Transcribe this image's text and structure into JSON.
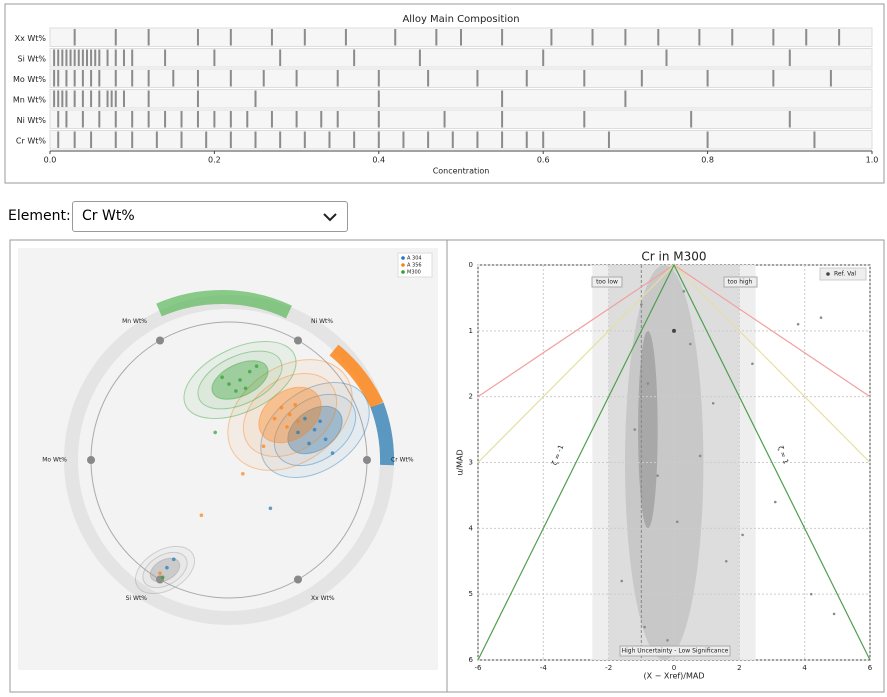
{
  "chart_data": [
    {
      "type": "strip",
      "title": "Alloy Main Composition",
      "x_label": "Concentration",
      "xlim": [
        0,
        1
      ],
      "xticks": [
        {
          "value": 0,
          "label": "0.0"
        },
        0.2,
        0.4,
        0.6,
        0.8,
        {
          "value": 1,
          "label": "1.0"
        }
      ],
      "rows": [
        {
          "name": "Xx Wt%",
          "values": [
            0.03,
            0.08,
            0.12,
            0.18,
            0.22,
            0.27,
            0.31,
            0.36,
            0.42,
            0.47,
            0.5,
            0.55,
            0.61,
            0.66,
            0.7,
            0.74,
            0.79,
            0.83,
            0.88,
            0.92,
            0.96
          ]
        },
        {
          "name": "Si Wt%",
          "values": [
            0.005,
            0.01,
            0.015,
            0.02,
            0.025,
            0.03,
            0.035,
            0.04,
            0.045,
            0.05,
            0.055,
            0.06,
            0.07,
            0.08,
            0.09,
            0.1,
            0.14,
            0.2,
            0.28,
            0.37,
            0.45,
            0.6,
            0.75,
            0.9
          ]
        },
        {
          "name": "Mo Wt%",
          "values": [
            0.005,
            0.01,
            0.02,
            0.03,
            0.04,
            0.05,
            0.06,
            0.08,
            0.1,
            0.12,
            0.15,
            0.18,
            0.22,
            0.26,
            0.3,
            0.35,
            0.4,
            0.46,
            0.52,
            0.58,
            0.65,
            0.72,
            0.8,
            0.88,
            0.95
          ]
        },
        {
          "name": "Mn Wt%",
          "values": [
            0.005,
            0.01,
            0.015,
            0.02,
            0.03,
            0.04,
            0.05,
            0.06,
            0.07,
            0.075,
            0.08,
            0.09,
            0.12,
            0.18,
            0.25,
            0.4,
            0.55,
            0.7
          ]
        },
        {
          "name": "Ni Wt%",
          "values": [
            0.01,
            0.02,
            0.04,
            0.06,
            0.08,
            0.1,
            0.12,
            0.14,
            0.16,
            0.18,
            0.2,
            0.22,
            0.24,
            0.27,
            0.3,
            0.33,
            0.35,
            0.4,
            0.48,
            0.55,
            0.65,
            0.78,
            0.9
          ]
        },
        {
          "name": "Cr Wt%",
          "values": [
            0.01,
            0.03,
            0.05,
            0.08,
            0.1,
            0.13,
            0.16,
            0.19,
            0.22,
            0.25,
            0.28,
            0.31,
            0.34,
            0.37,
            0.4,
            0.43,
            0.46,
            0.49,
            0.52,
            0.55,
            0.58,
            0.6,
            0.68,
            0.8,
            0.93
          ]
        }
      ]
    },
    {
      "type": "radial",
      "axes": [
        "Mn Wt%",
        "Ni Wt%",
        "Cr Wt%",
        "Xx Wt%",
        "Si Wt%",
        "Mo Wt%"
      ],
      "series": [
        {
          "name": "A 304",
          "color": "#1f77b4",
          "x": [
            0.62,
            0.55,
            0.7,
            0.58,
            0.66,
            0.5,
            -0.45,
            -0.4,
            0.3,
            0.75
          ],
          "y": [
            0.22,
            0.3,
            0.15,
            0.12,
            0.28,
            0.2,
            -0.78,
            -0.72,
            -0.35,
            0.05
          ]
        },
        {
          "name": "A 356",
          "color": "#ff7f0e",
          "x": [
            0.44,
            0.38,
            0.5,
            0.42,
            0.33,
            0.48,
            -0.5,
            0.1,
            -0.2,
            0.25
          ],
          "y": [
            0.33,
            0.38,
            0.28,
            0.24,
            0.3,
            0.4,
            -0.82,
            -0.1,
            -0.4,
            0.1
          ]
        },
        {
          "name": "M300",
          "color": "#2ca02c",
          "x": [
            0.08,
            0.0,
            0.15,
            0.05,
            0.12,
            -0.05,
            0.2,
            -0.48,
            -0.1
          ],
          "y": [
            0.58,
            0.55,
            0.64,
            0.5,
            0.52,
            0.6,
            0.68,
            -0.85,
            0.2
          ]
        }
      ]
    },
    {
      "type": "scatter",
      "title": "Cr in M300",
      "x_label": "(X − Xref)/MAD",
      "y_label": "u/MAD",
      "xlim": [
        -6,
        6
      ],
      "xticks": [
        -6,
        -4,
        -2,
        0,
        2,
        4,
        6
      ],
      "ylim": [
        6,
        0
      ],
      "yticks": [
        0,
        1,
        2,
        3,
        4,
        5,
        6
      ],
      "grid": true,
      "points": {
        "color": "#8a8a8a",
        "x": [
          -1,
          -0.8,
          -1.2,
          -0.5,
          0.3,
          0.5,
          1.2,
          1.6,
          2.4,
          3.1,
          4.2,
          4.9,
          -1.6,
          -0.2,
          0.8,
          3.8,
          4.5,
          2.1,
          -0.9,
          0.1
        ],
        "y": [
          0.6,
          1.8,
          2.5,
          3.2,
          0.4,
          1.2,
          2.1,
          4.5,
          1.5,
          3.6,
          5.0,
          5.3,
          4.8,
          5.7,
          2.9,
          0.9,
          0.8,
          4.1,
          5.5,
          3.9
        ]
      },
      "series": [
        {
          "name": "Ref. Val",
          "color": "#444444",
          "x": [
            0
          ],
          "y": [
            1
          ]
        }
      ],
      "guide_lines": [
        {
          "color": "#f2a0a0",
          "x": [
            -6,
            0,
            6
          ],
          "y": [
            2,
            0,
            2
          ]
        },
        {
          "color": "#e6dfa0",
          "x": [
            -6,
            0,
            6
          ],
          "y": [
            3,
            0,
            3
          ]
        },
        {
          "color": "#4f9f4f",
          "x": [
            -6,
            0,
            6
          ],
          "y": [
            6,
            0,
            6
          ]
        }
      ],
      "annotations": [
        "too low",
        "too high",
        "ζ = -1",
        "ζ = 1",
        "High Uncertainty - Low Significance"
      ]
    }
  ],
  "element_selector": {
    "label": "Element:",
    "selected": "Cr Wt%"
  }
}
